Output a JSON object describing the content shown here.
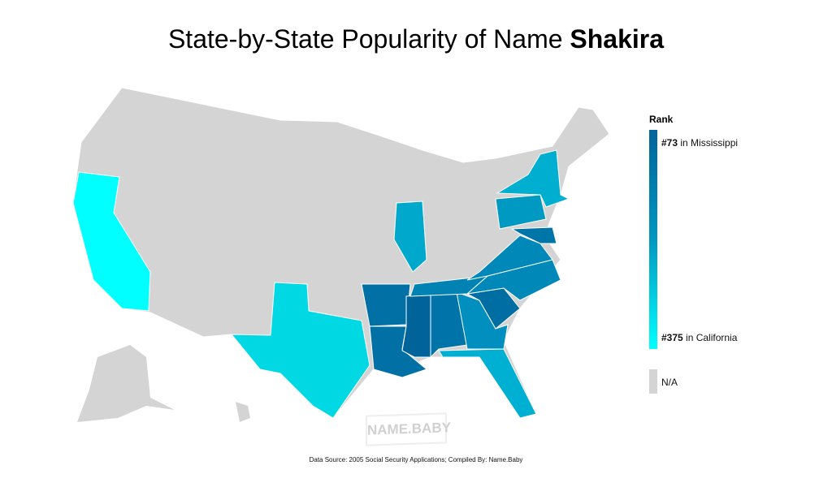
{
  "title": {
    "prefix": "State-by-State Popularity of Name ",
    "name": "Shakira"
  },
  "legend": {
    "title": "Rank",
    "top": {
      "rank": "#73",
      "text": " in Mississippi"
    },
    "bottom": {
      "rank": "#375",
      "text": " in California"
    },
    "na": "N/A",
    "colors": {
      "high": "#00649a",
      "low": "#00ffff",
      "na": "#d4d4d4"
    }
  },
  "states": [
    {
      "name": "California",
      "color": "#00ffff"
    },
    {
      "name": "Texas",
      "color": "#00d8e3"
    },
    {
      "name": "Arkansas",
      "color": "#0070a5"
    },
    {
      "name": "Louisiana",
      "color": "#0070a5"
    },
    {
      "name": "Mississippi",
      "color": "#00649a"
    },
    {
      "name": "Alabama",
      "color": "#0073a8"
    },
    {
      "name": "Georgia",
      "color": "#008fbe"
    },
    {
      "name": "Florida",
      "color": "#00b0d2"
    },
    {
      "name": "South Carolina",
      "color": "#006ea3"
    },
    {
      "name": "North Carolina",
      "color": "#0088b8"
    },
    {
      "name": "Tennessee",
      "color": "#0082b3"
    },
    {
      "name": "Virginia",
      "color": "#0088b8"
    },
    {
      "name": "Maryland",
      "color": "#0075a8"
    },
    {
      "name": "Pennsylvania",
      "color": "#0099c2"
    },
    {
      "name": "New York",
      "color": "#00aed0"
    },
    {
      "name": "Illinois",
      "color": "#00a8cc"
    }
  ],
  "watermark": "NAME.BABY",
  "footer": "Data Source: 2005 Social Security Applications; Compiled By: Name.Baby"
}
